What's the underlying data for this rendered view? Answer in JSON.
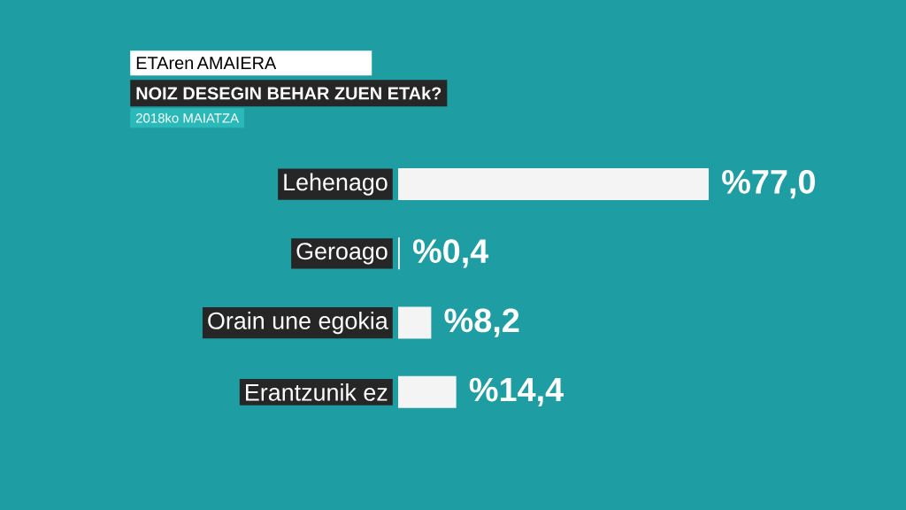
{
  "chart_data": {
    "type": "bar",
    "orientation": "horizontal",
    "title": "ETAren AMAIERA",
    "subtitle": "NOIZ DESEGIN BEHAR ZUEN ETAk?",
    "annotations": [
      "2018ko MAIATZA"
    ],
    "categories": [
      "Lehenago",
      "Geroago",
      "Orain une egokia",
      "Erantzunik ez"
    ],
    "values": [
      77.0,
      0.4,
      8.2,
      14.4
    ],
    "value_labels": [
      "%77,0",
      "%0,4",
      "%8,2",
      "%14,4"
    ],
    "color": "#f4f4f4"
  }
}
